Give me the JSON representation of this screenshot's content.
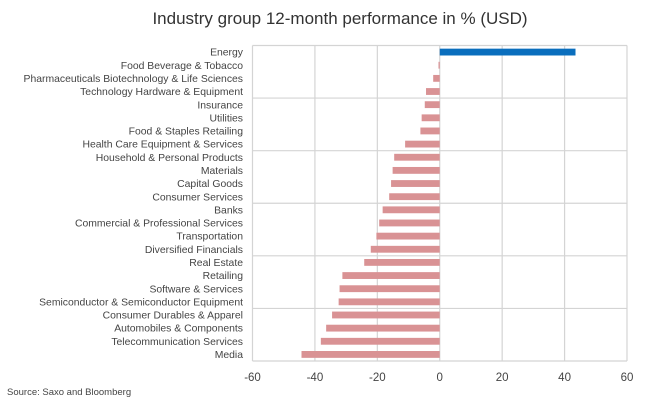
{
  "chart_data": {
    "type": "bar",
    "orientation": "horizontal",
    "title": "Industry group 12-month performance in % (USD)",
    "xlabel": "",
    "ylabel": "",
    "xlim": [
      -60,
      60
    ],
    "xticks": [
      -60,
      -40,
      -20,
      0,
      20,
      40,
      60
    ],
    "xtick_labels": [
      "-60",
      "-40",
      "-20",
      "0",
      "20",
      "40",
      "60"
    ],
    "grid": true,
    "legend": "none",
    "categories": [
      "Energy",
      "Food Beverage & Tobacco",
      "Pharmaceuticals Biotechnology & Life Sciences",
      "Technology Hardware & Equipment",
      "Insurance",
      "Utilities",
      "Food & Staples Retailing",
      "Health Care Equipment & Services",
      "Household & Personal Products",
      "Materials",
      "Capital Goods",
      "Consumer Services",
      "Banks",
      "Commercial & Professional Services",
      "Transportation",
      "Diversified Financials",
      "Real Estate",
      "Retailing",
      "Software & Services",
      "Semiconductor & Semiconductor Equipment",
      "Consumer Durables & Apparel",
      "Automobiles & Components",
      "Telecommunication Services",
      "Media"
    ],
    "values": [
      43.5,
      -0.4,
      -2.1,
      -4.4,
      -4.8,
      -5.8,
      -6.2,
      -11.1,
      -14.6,
      -15.1,
      -15.6,
      -16.2,
      -18.3,
      -19.4,
      -20.3,
      -22.1,
      -24.2,
      -31.2,
      -32.1,
      -32.4,
      -34.5,
      -36.4,
      -38.1,
      -44.3
    ],
    "colors": {
      "positive": "#0a6ebd",
      "negative": "#d99294",
      "grid": "#d4d4d4"
    },
    "source": "Source: Saxo and Bloomberg"
  }
}
